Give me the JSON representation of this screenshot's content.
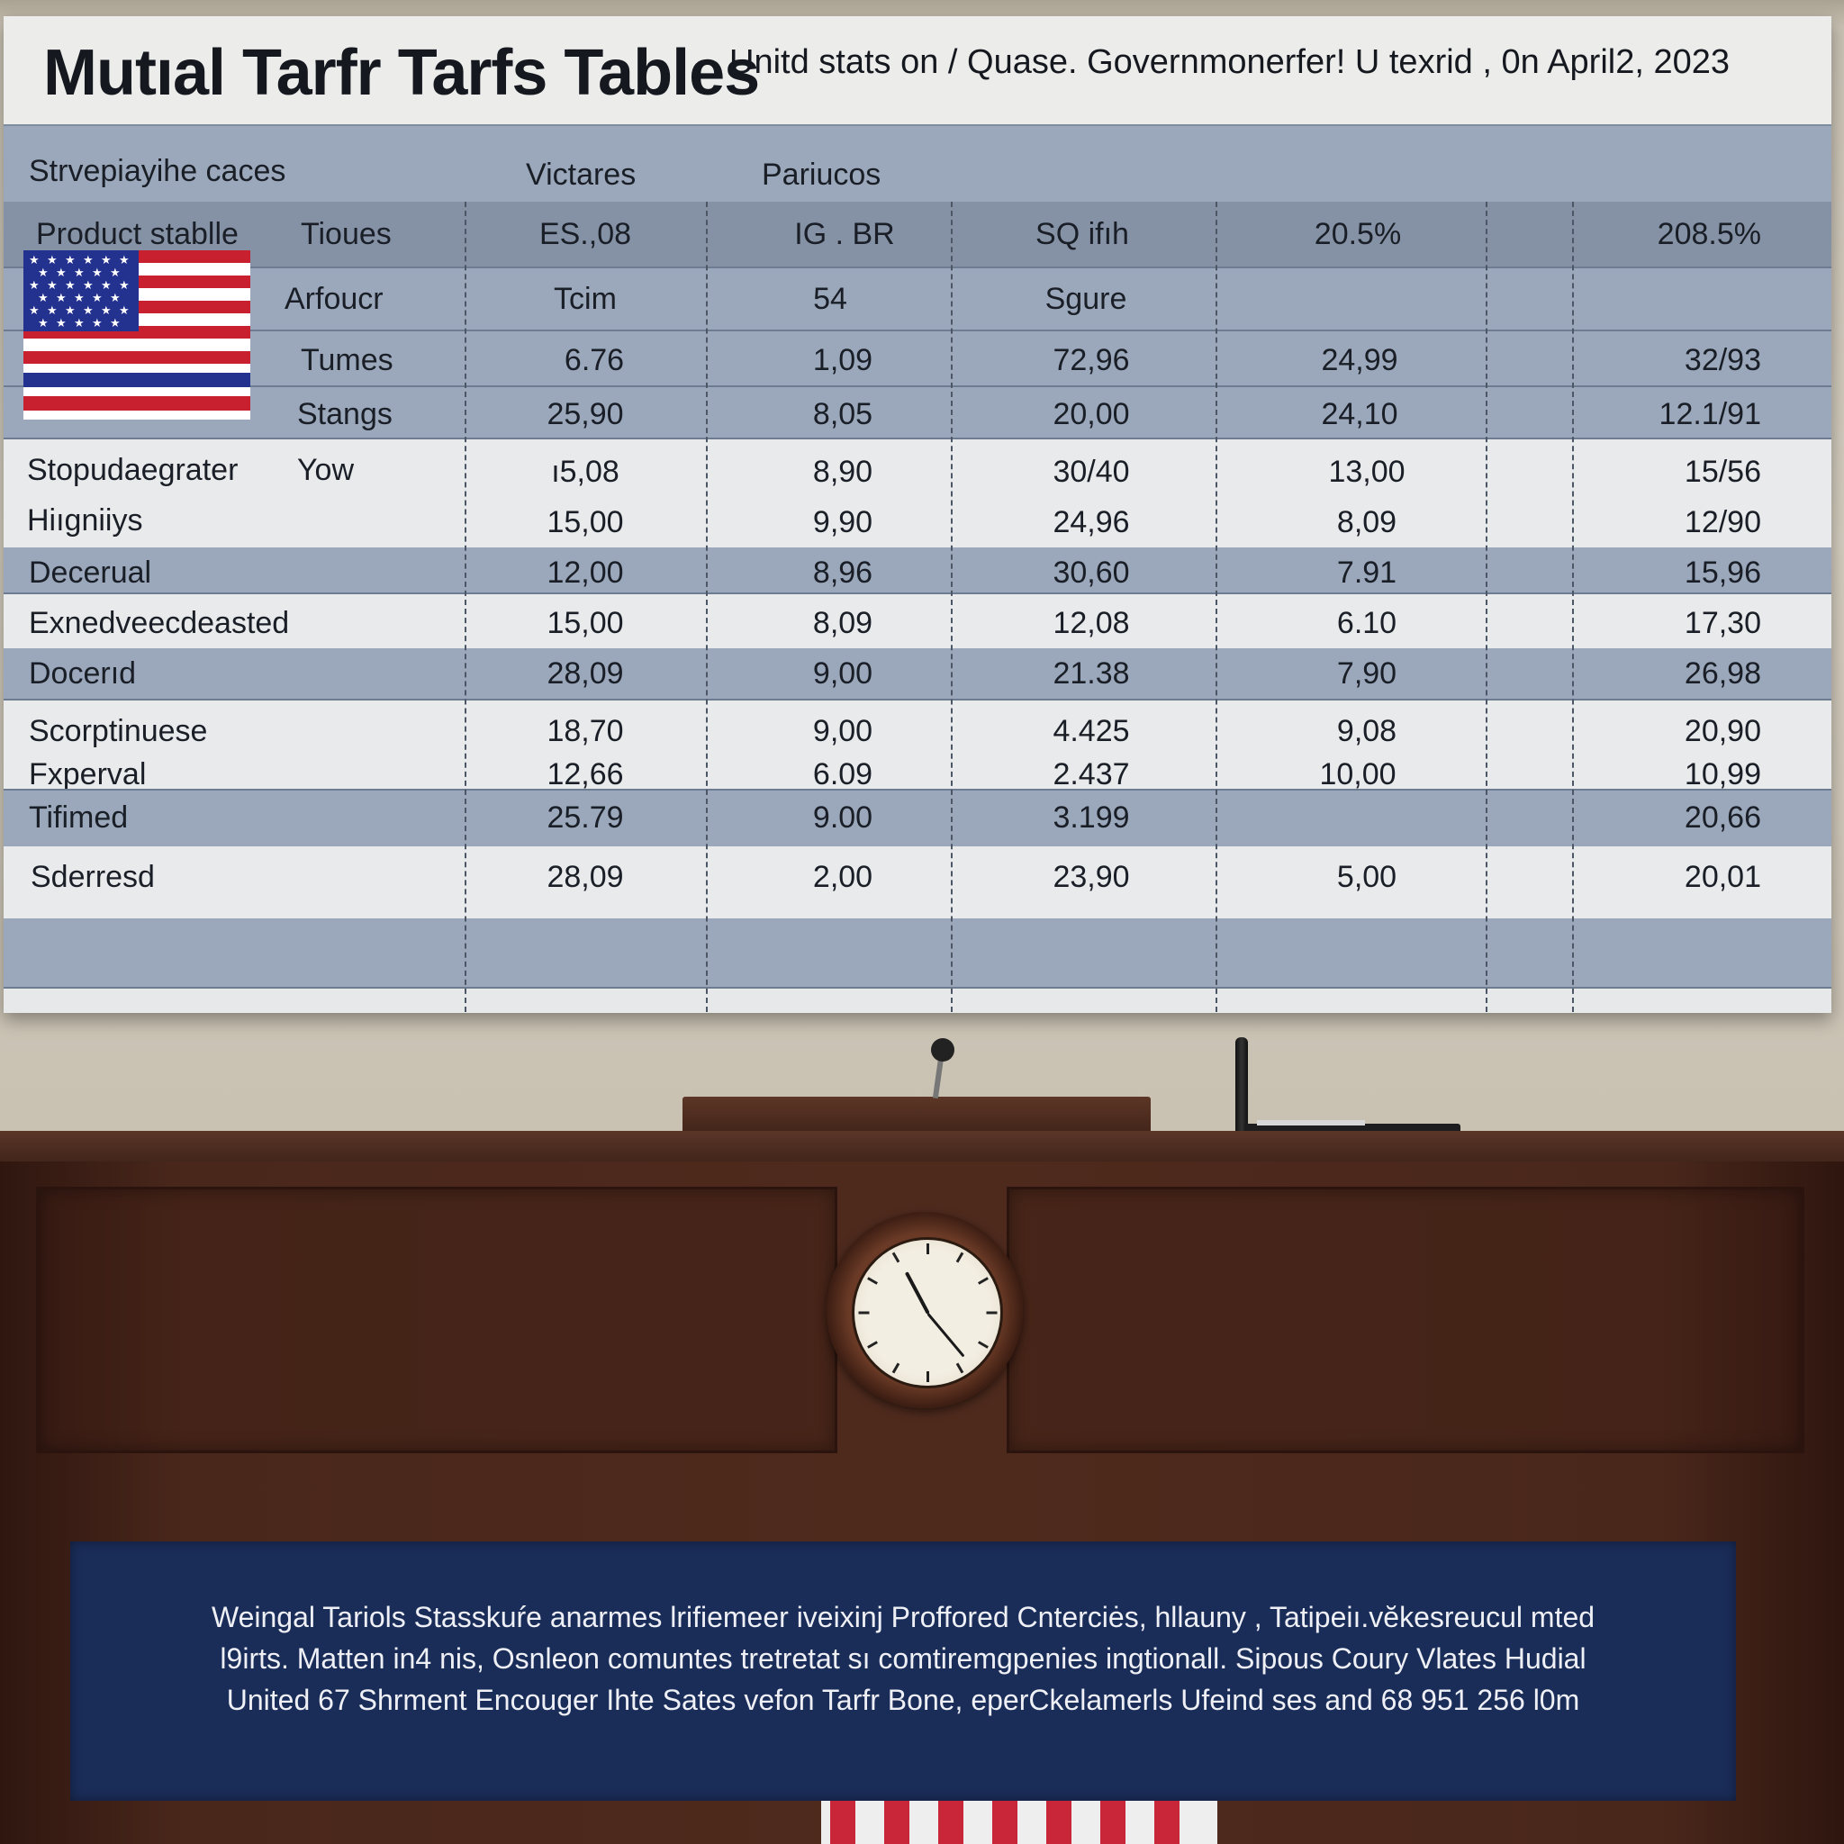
{
  "board": {
    "title": "Mutıal Tarfr Tarfs Tables",
    "subtitle": "Unitd stats on / Quase. Governmonerfer! U texrid , 0n April2, 2023",
    "header_row": {
      "col1": "Strvepiayihe caces",
      "col2": "Victares",
      "col3": "Pariucos"
    },
    "subheader_row": {
      "label_a": "Product stablle",
      "label_b": "Tioues",
      "c1": "ES.,08",
      "c2": "IG . BR",
      "c3": "SQ ifıh",
      "c4": "20.5%",
      "c5": "208.5%"
    },
    "flag_rows": [
      {
        "label": "Arfoucr",
        "c1": "Tcim",
        "c2": "54",
        "c3": "Sgure",
        "c4": "",
        "c5": ""
      },
      {
        "label": "Tumes",
        "c1": "6.76",
        "c2": "1,09",
        "c3": "72,96",
        "c4": "24,99",
        "c5": "32/93"
      },
      {
        "label": "Stangs",
        "c1": "25,90",
        "c2": "8,05",
        "c3": "20,00",
        "c4": "24,10",
        "c5": "12.1/91"
      }
    ],
    "rows": [
      {
        "label": "Stopudaegrater",
        "sublabel": "Yow",
        "c1": "ı5,08",
        "c2": "8,90",
        "c3": "30/40",
        "c4": "13,00",
        "c5": "15/56"
      },
      {
        "label": "Hiıgniiys",
        "sublabel": "",
        "c1": "15,00",
        "c2": "9,90",
        "c3": "24,96",
        "c4": "8,09",
        "c5": "12/90"
      },
      {
        "label": "Decerual",
        "sublabel": "",
        "c1": "12,00",
        "c2": "8,96",
        "c3": "30,60",
        "c4": "7.91",
        "c5": "15,96"
      },
      {
        "label": "Exnedveecdeasted",
        "sublabel": "",
        "c1": "15,00",
        "c2": "8,09",
        "c3": "12,08",
        "c4": "6.10",
        "c5": "17,30"
      },
      {
        "label": "Docerıd",
        "sublabel": "",
        "c1": "28,09",
        "c2": "9,00",
        "c3": "21.38",
        "c4": "7,90",
        "c5": "26,98"
      },
      {
        "label": "Scorptinuese",
        "sublabel": "",
        "c1": "18,70",
        "c2": "9,00",
        "c3": "4.425",
        "c4": "9,08",
        "c5": "20,90"
      },
      {
        "label": "Fxperval",
        "sublabel": "",
        "c1": "12,66",
        "c2": "6.09",
        "c3": "2.437",
        "c4": "10,00",
        "c5": "10,99"
      },
      {
        "label": "Tifimed",
        "sublabel": "",
        "c1": "25.79",
        "c2": "9.00",
        "c3": "3.199",
        "c4": "",
        "c5": "20,66"
      },
      {
        "label": "Sderresd",
        "sublabel": "",
        "c1": "28,09",
        "c2": "2,00",
        "c3": "23,90",
        "c4": "5,00",
        "c5": "20,01"
      }
    ]
  },
  "banner": {
    "line1": "Weingal Tariols Stasskuŕe anarmes lrifiemeer  iveixinj Proffored Cnterciės, hllauny , Tatipeiı.vĕkesreucul mted",
    "line2": "l9irts. Matten in4 nis, Osnleon comuntes tretretat sı comtiremgpenies ingtionall. Sipous Coury Vlates Hudial",
    "line3": "United 67 Shrment Encouger Ihte Sates vefon Tarfr Bone, eperCkelamerls Ufeind ses and 68  951 256 l0m"
  },
  "clock": {
    "label": ""
  },
  "colors": {
    "board_bg": "#e7e8ea",
    "band_blue": "#9ba8bb",
    "band_dark": "#8592a6",
    "wood": "#4e2a1d",
    "banner_navy": "#1a2c58"
  }
}
